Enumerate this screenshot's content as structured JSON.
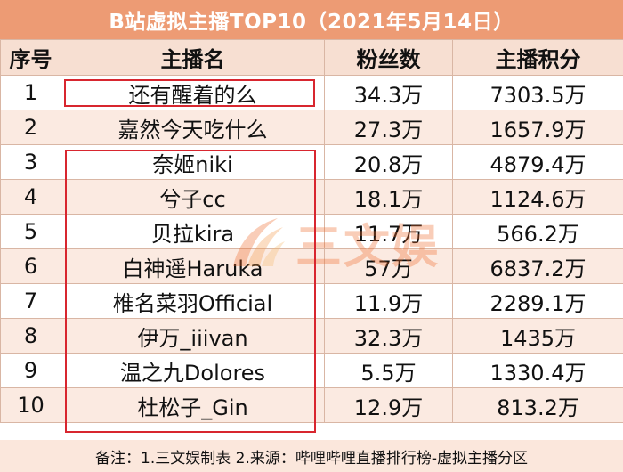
{
  "title": "B站虚拟主播TOP10（2021年5月14日）",
  "table": {
    "headers": [
      "序号",
      "主播名",
      "粉丝数",
      "主播积分"
    ],
    "rows": [
      [
        "1",
        "还有醒着的么",
        "34.3万",
        "7303.5万"
      ],
      [
        "2",
        "嘉然今天吃什么",
        "27.3万",
        "1657.9万"
      ],
      [
        "3",
        "奈姬niki",
        "20.8万",
        "4879.4万"
      ],
      [
        "4",
        "兮子cc",
        "18.1万",
        "1124.6万"
      ],
      [
        "5",
        "贝拉kira",
        "11.7万",
        "566.2万"
      ],
      [
        "6",
        "白神遥Haruka",
        "57万",
        "6837.2万"
      ],
      [
        "7",
        "椎名菜羽Official",
        "11.9万",
        "2289.1万"
      ],
      [
        "8",
        "伊万_iiivan",
        "32.3万",
        "1435万"
      ],
      [
        "9",
        "温之九Dolores",
        "5.5万",
        "1330.4万"
      ],
      [
        "10",
        "杜松子_Gin",
        "12.9万",
        "813.2万"
      ]
    ]
  },
  "footer": "备注：1.三文娱制表 2.来源：哔哩哔哩直播排行榜-虚拟主播分区",
  "watermark": {
    "text": "三文娱",
    "icon": "sanwenyu-logo-icon",
    "color": "#ef6b2a"
  },
  "highlight_color": "#d8262f",
  "colors": {
    "title_bg": "#ed9b74",
    "header_bg": "#f7dfd2",
    "alt_row_bg": "#fbeae1",
    "footer_bg": "#fbe7dc"
  }
}
